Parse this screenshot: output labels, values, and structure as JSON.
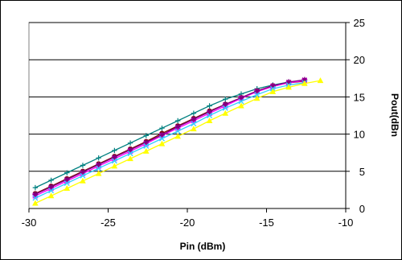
{
  "chart_data": {
    "type": "line",
    "title": "",
    "xlabel": "Pin (dBm)",
    "ylabel": "Pout(dBn",
    "xlim": [
      -30,
      -10
    ],
    "ylim": [
      0,
      25
    ],
    "x_ticks": [
      -30,
      -25,
      -20,
      -15,
      -10
    ],
    "y_ticks": [
      0,
      5,
      10,
      15,
      20,
      25
    ],
    "y_axis_position": "right",
    "grid": "horizontal",
    "legend": "none",
    "series": [
      {
        "color": "#008080",
        "marker": "plus",
        "x": [
          -29.6,
          -28.6,
          -27.6,
          -26.6,
          -25.6,
          -24.6,
          -23.6,
          -22.6,
          -21.6,
          -20.6,
          -19.6,
          -18.6,
          -17.6,
          -16.6,
          -15.6,
          -14.6,
          -13.6,
          -12.6
        ],
        "y": [
          2.8,
          3.8,
          4.8,
          5.8,
          6.8,
          7.8,
          8.8,
          9.8,
          10.8,
          11.8,
          12.8,
          13.8,
          14.7,
          15.4,
          16.1,
          16.6,
          17.0,
          17.1
        ]
      },
      {
        "color": "#800000",
        "marker": "circle",
        "x": [
          -29.6,
          -28.6,
          -27.6,
          -26.6,
          -25.6,
          -24.6,
          -23.6,
          -22.6,
          -21.6,
          -20.6,
          -19.6,
          -18.6,
          -17.6,
          -16.6,
          -15.6,
          -14.6,
          -13.6,
          -12.6
        ],
        "y": [
          2.0,
          3.0,
          4.0,
          5.0,
          6.0,
          7.0,
          8.0,
          9.0,
          10.1,
          11.1,
          12.1,
          13.1,
          14.0,
          14.9,
          15.8,
          16.5,
          16.9,
          17.1
        ]
      },
      {
        "color": "#FF00FF",
        "marker": "square",
        "x": [
          -29.6,
          -28.6,
          -27.6,
          -26.6,
          -25.6,
          -24.6,
          -23.6,
          -22.6,
          -21.6,
          -20.6,
          -19.6,
          -18.6,
          -17.6,
          -16.6,
          -15.6,
          -14.6,
          -13.6,
          -12.6
        ],
        "y": [
          1.7,
          2.7,
          3.7,
          4.7,
          5.7,
          6.7,
          7.7,
          8.7,
          9.8,
          10.8,
          11.8,
          12.8,
          13.8,
          14.8,
          15.7,
          16.4,
          16.9,
          17.2
        ]
      },
      {
        "color": "#800080",
        "marker": "star",
        "x": [
          -29.6,
          -28.6,
          -27.6,
          -26.6,
          -25.6,
          -24.6,
          -23.6,
          -22.6,
          -21.6,
          -20.6,
          -19.6,
          -18.6,
          -17.6,
          -16.6,
          -15.6,
          -14.6,
          -13.6,
          -12.6
        ],
        "y": [
          1.9,
          2.9,
          3.9,
          4.9,
          5.9,
          6.9,
          7.9,
          8.9,
          9.9,
          11.0,
          12.0,
          13.0,
          14.0,
          14.9,
          15.8,
          16.5,
          17.0,
          17.3
        ]
      },
      {
        "color": "#33CCFF",
        "marker": "x",
        "x": [
          -29.6,
          -28.6,
          -27.6,
          -26.6,
          -25.6,
          -24.6,
          -23.6,
          -22.6,
          -21.6,
          -20.6,
          -19.6,
          -18.6,
          -17.6,
          -16.6,
          -15.6,
          -14.6,
          -13.6,
          -12.6
        ],
        "y": [
          1.4,
          2.4,
          3.4,
          4.4,
          5.4,
          6.4,
          7.4,
          8.4,
          9.4,
          10.4,
          11.4,
          12.5,
          13.5,
          14.4,
          15.3,
          16.1,
          16.6,
          16.9
        ]
      },
      {
        "color": "#FFFF00",
        "marker": "triangle",
        "x": [
          -29.6,
          -28.6,
          -27.6,
          -26.6,
          -25.6,
          -24.6,
          -23.6,
          -22.6,
          -21.6,
          -20.6,
          -19.6,
          -18.6,
          -17.6,
          -16.6,
          -15.6,
          -14.6,
          -13.6,
          -12.6,
          -11.6
        ],
        "y": [
          0.7,
          1.7,
          2.7,
          3.7,
          4.7,
          5.7,
          6.7,
          7.7,
          8.7,
          9.7,
          10.7,
          11.8,
          12.8,
          13.8,
          14.8,
          15.7,
          16.3,
          16.8,
          17.2
        ]
      }
    ]
  }
}
